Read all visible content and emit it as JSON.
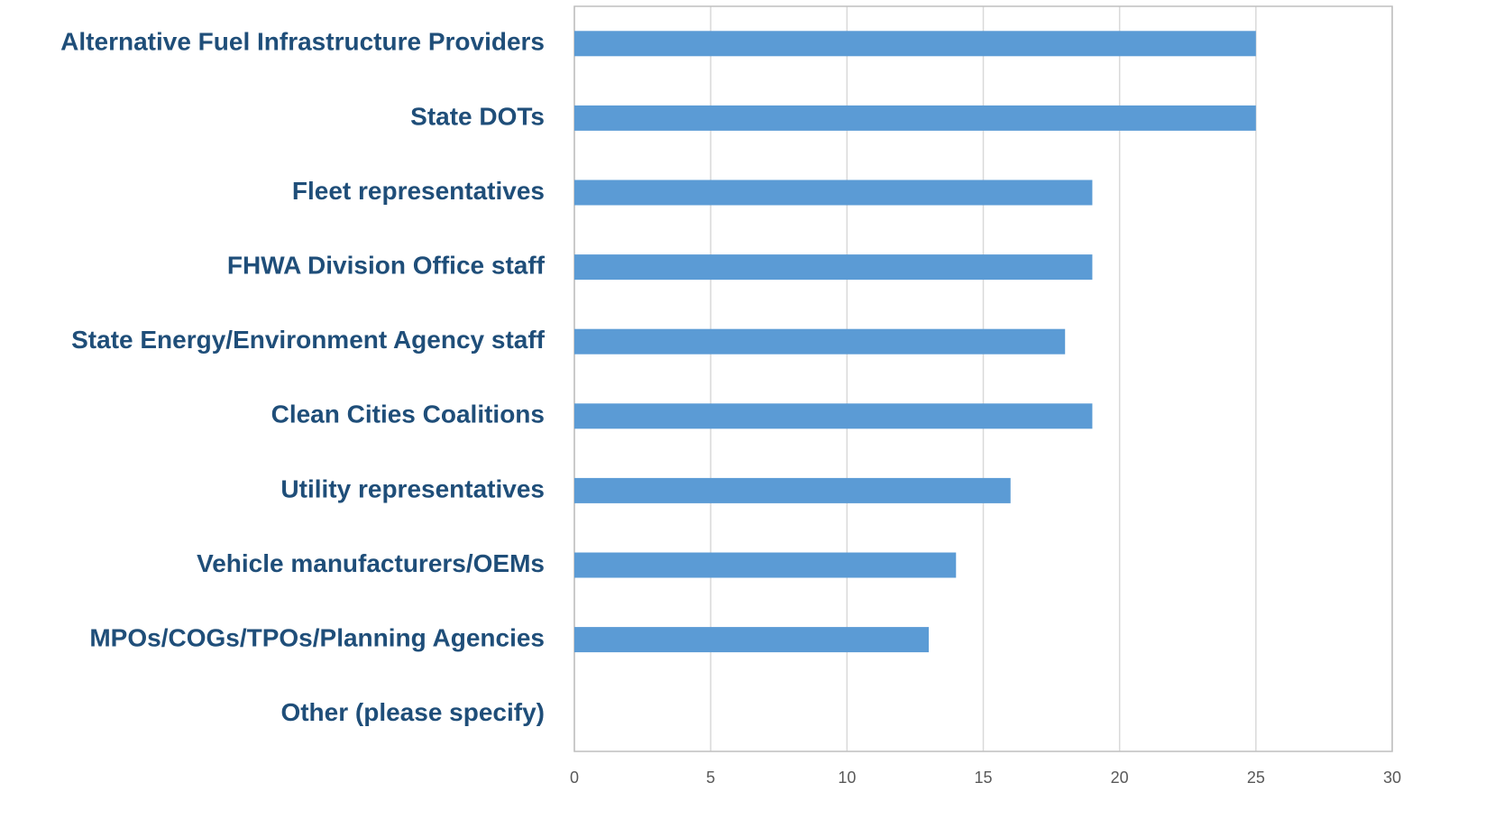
{
  "chart_data": {
    "type": "bar",
    "orientation": "horizontal",
    "categories": [
      "Alternative Fuel Infrastructure Providers",
      "State DOTs",
      "Fleet representatives",
      "FHWA Division Office staff",
      "State Energy/Environment Agency staff",
      "Clean Cities Coalitions",
      "Utility representatives",
      "Vehicle manufacturers/OEMs",
      "MPOs/COGs/TPOs/Planning Agencies",
      "Other (please specify)"
    ],
    "values": [
      25,
      25,
      19,
      19,
      18,
      19,
      16,
      14,
      13,
      0
    ],
    "color": "#5b9bd5",
    "xlim": [
      0,
      30
    ],
    "xticks": [
      0,
      5,
      10,
      15,
      20,
      25,
      30
    ],
    "grid": true
  }
}
